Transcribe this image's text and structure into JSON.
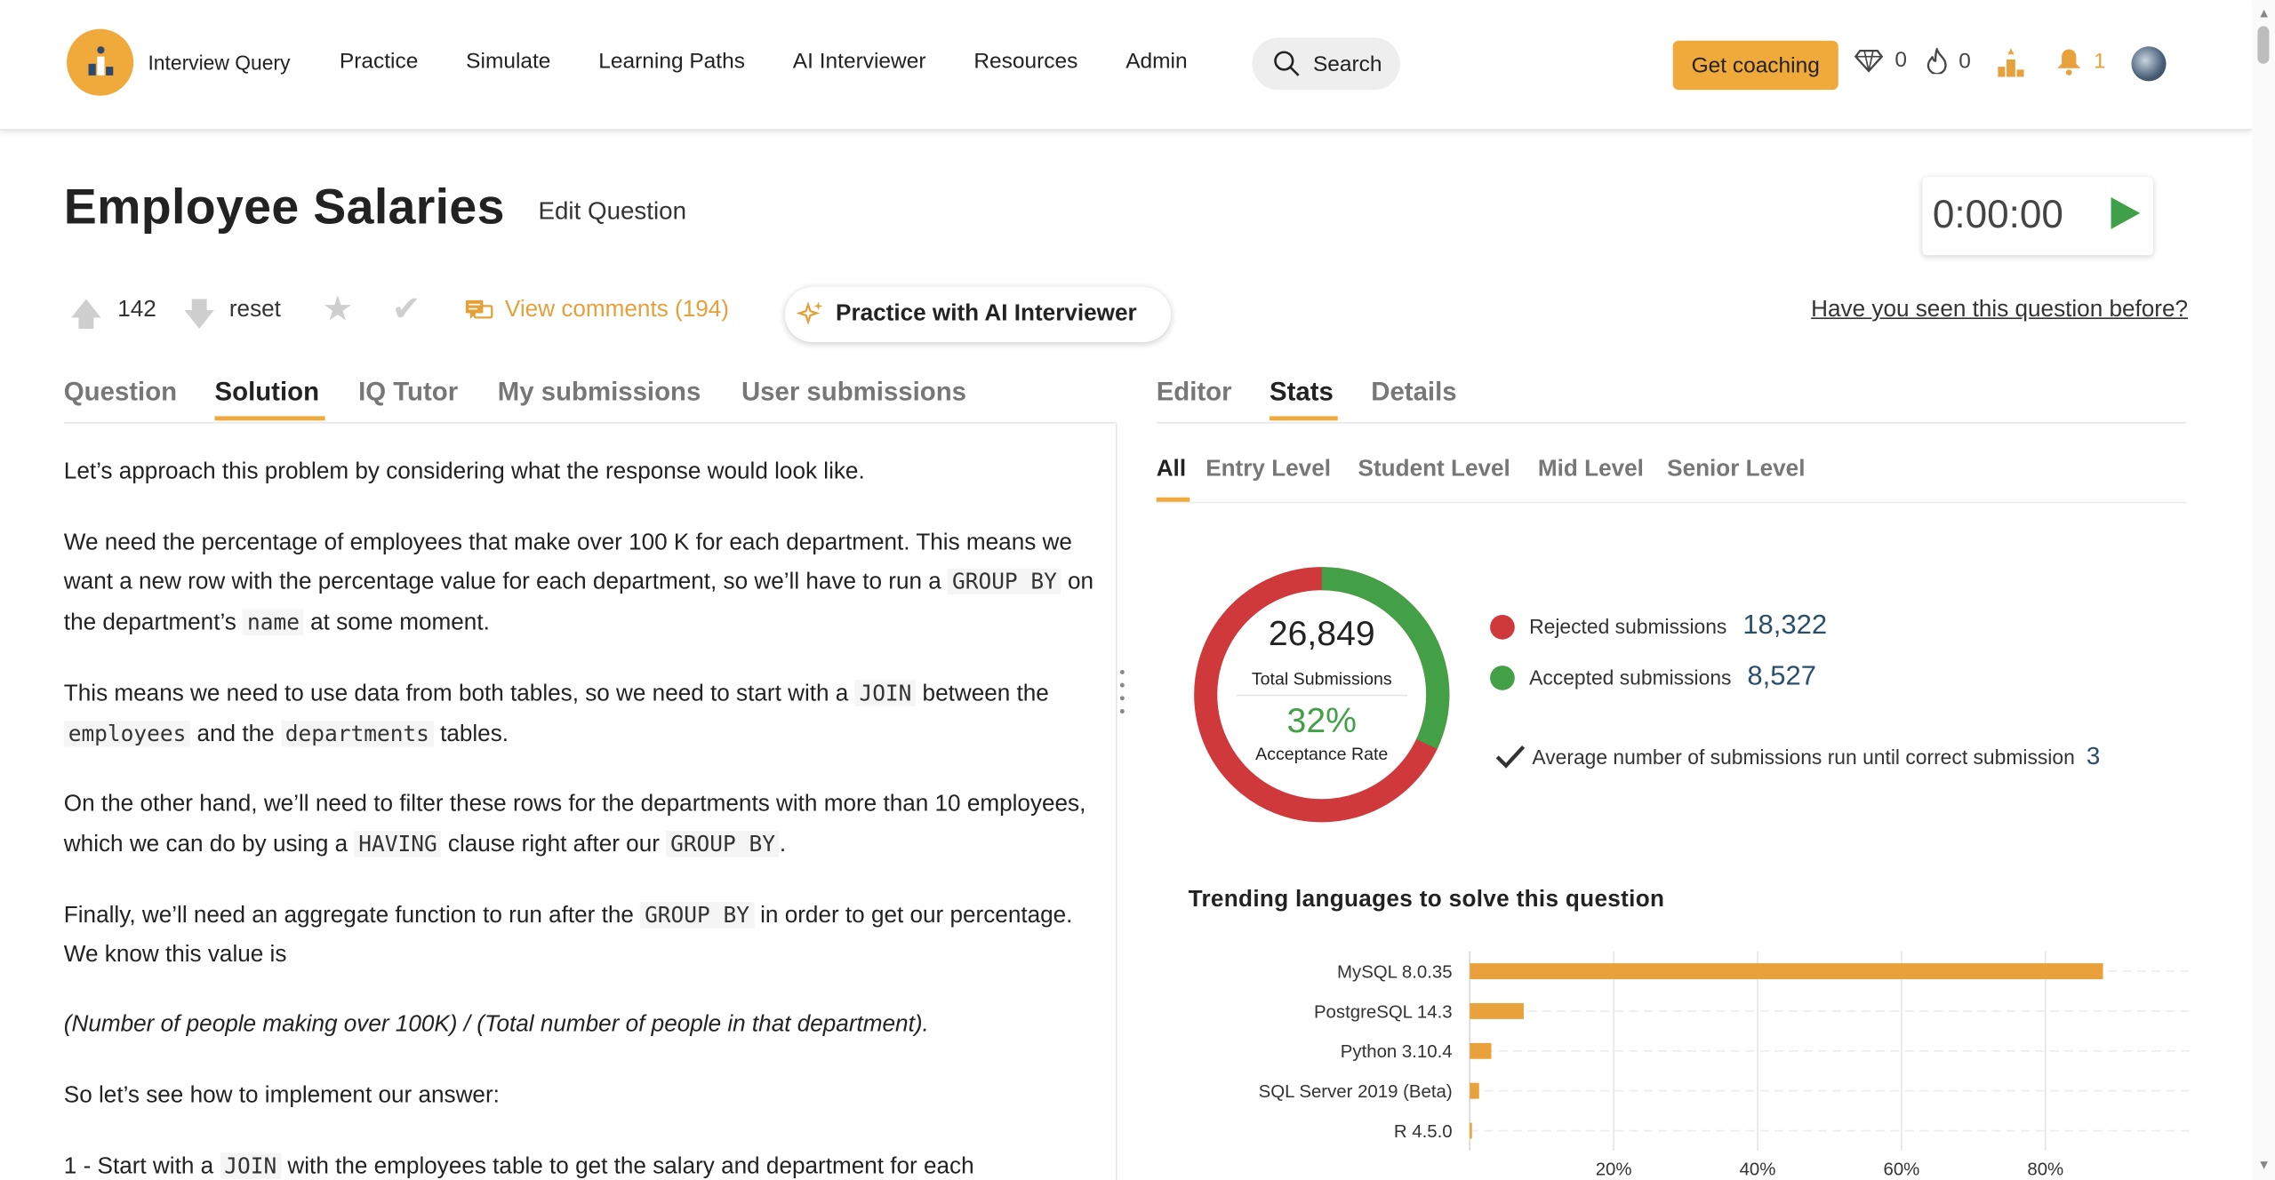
{
  "nav": {
    "brand": "Interview Query",
    "links": [
      "Practice",
      "Simulate",
      "Learning Paths",
      "AI Interviewer",
      "Resources",
      "Admin"
    ],
    "search_label": "Search",
    "coaching_label": "Get coaching",
    "gems": "0",
    "streak": "0",
    "notifications": "1"
  },
  "question": {
    "title": "Employee Salaries",
    "edit_label": "Edit Question",
    "timer": "0:00:00",
    "votes": "142",
    "reset_label": "reset",
    "comments_label": "View comments (194)",
    "ai_label": "Practice with AI Interviewer",
    "seen_label": "Have you seen this question before?"
  },
  "left_tabs": [
    "Question",
    "Solution",
    "IQ Tutor",
    "My submissions",
    "User submissions"
  ],
  "right_tabs": [
    "Editor",
    "Stats",
    "Details"
  ],
  "level_tabs": [
    "All",
    "Entry Level",
    "Student Level",
    "Mid Level",
    "Senior Level"
  ],
  "solution": {
    "p1": "Let’s approach this problem by considering what the response would look like.",
    "p2a": "We need the percentage of employees that make over 100 K for each department. This means we want a new row with the percentage value for each department, so we’ll have to run a ",
    "p2_code1": "GROUP BY",
    "p2b": " on the department’s ",
    "p2_code2": "name",
    "p2c": " at some moment.",
    "p3a": "This means we need to use data from both tables, so we need to start with a ",
    "p3_code1": "JOIN",
    "p3b": " between the ",
    "p3_code2": "employees",
    "p3c": " and the ",
    "p3_code3": "departments",
    "p3d": " tables.",
    "p4a": "On the other hand, we’ll need to filter these rows for the departments with more than 10 employees, which we can do by using a ",
    "p4_code1": "HAVING",
    "p4b": " clause right after our ",
    "p4_code2": "GROUP BY",
    "p4c": ".",
    "p5a": "Finally, we’ll need an aggregate function to run after the ",
    "p5_code1": "GROUP BY",
    "p5b": " in order to get our percentage. We know this value is",
    "p6": "(Number of people making over 100K) / (Total number of people in that department).",
    "p7": "So let’s see how to implement our answer:",
    "p8a": "1 - Start with a ",
    "p8_code1": "JOIN",
    "p8b": " with the employees table to get the salary and department for each"
  },
  "stats": {
    "total": "26,849",
    "total_label": "Total Submissions",
    "acceptance": "32%",
    "acceptance_label": "Acceptance Rate",
    "acceptance_fraction": 0.32,
    "rejected_label": "Rejected submissions",
    "rejected": "18,322",
    "accepted_label": "Accepted submissions",
    "accepted": "8,527",
    "avg_label": "Average number of submissions run until correct submission",
    "avg": "3",
    "colors": {
      "rejected": "#d0393b",
      "accepted": "#43a047",
      "bar": "#e9a23b"
    }
  },
  "chart_title": "Trending languages to solve this question",
  "chart_data": {
    "type": "bar",
    "orientation": "horizontal",
    "categories": [
      "MySQL 8.0.35",
      "PostgreSQL 14.3",
      "Python 3.10.4",
      "SQL Server 2019 (Beta)",
      "R 4.5.0"
    ],
    "values": [
      88,
      7.5,
      3,
      1.3,
      0.2
    ],
    "xlim": [
      0,
      100
    ],
    "xticks": [
      "20%",
      "40%",
      "60%",
      "80%"
    ],
    "xtick_values": [
      20,
      40,
      60,
      80
    ],
    "grid": true
  }
}
